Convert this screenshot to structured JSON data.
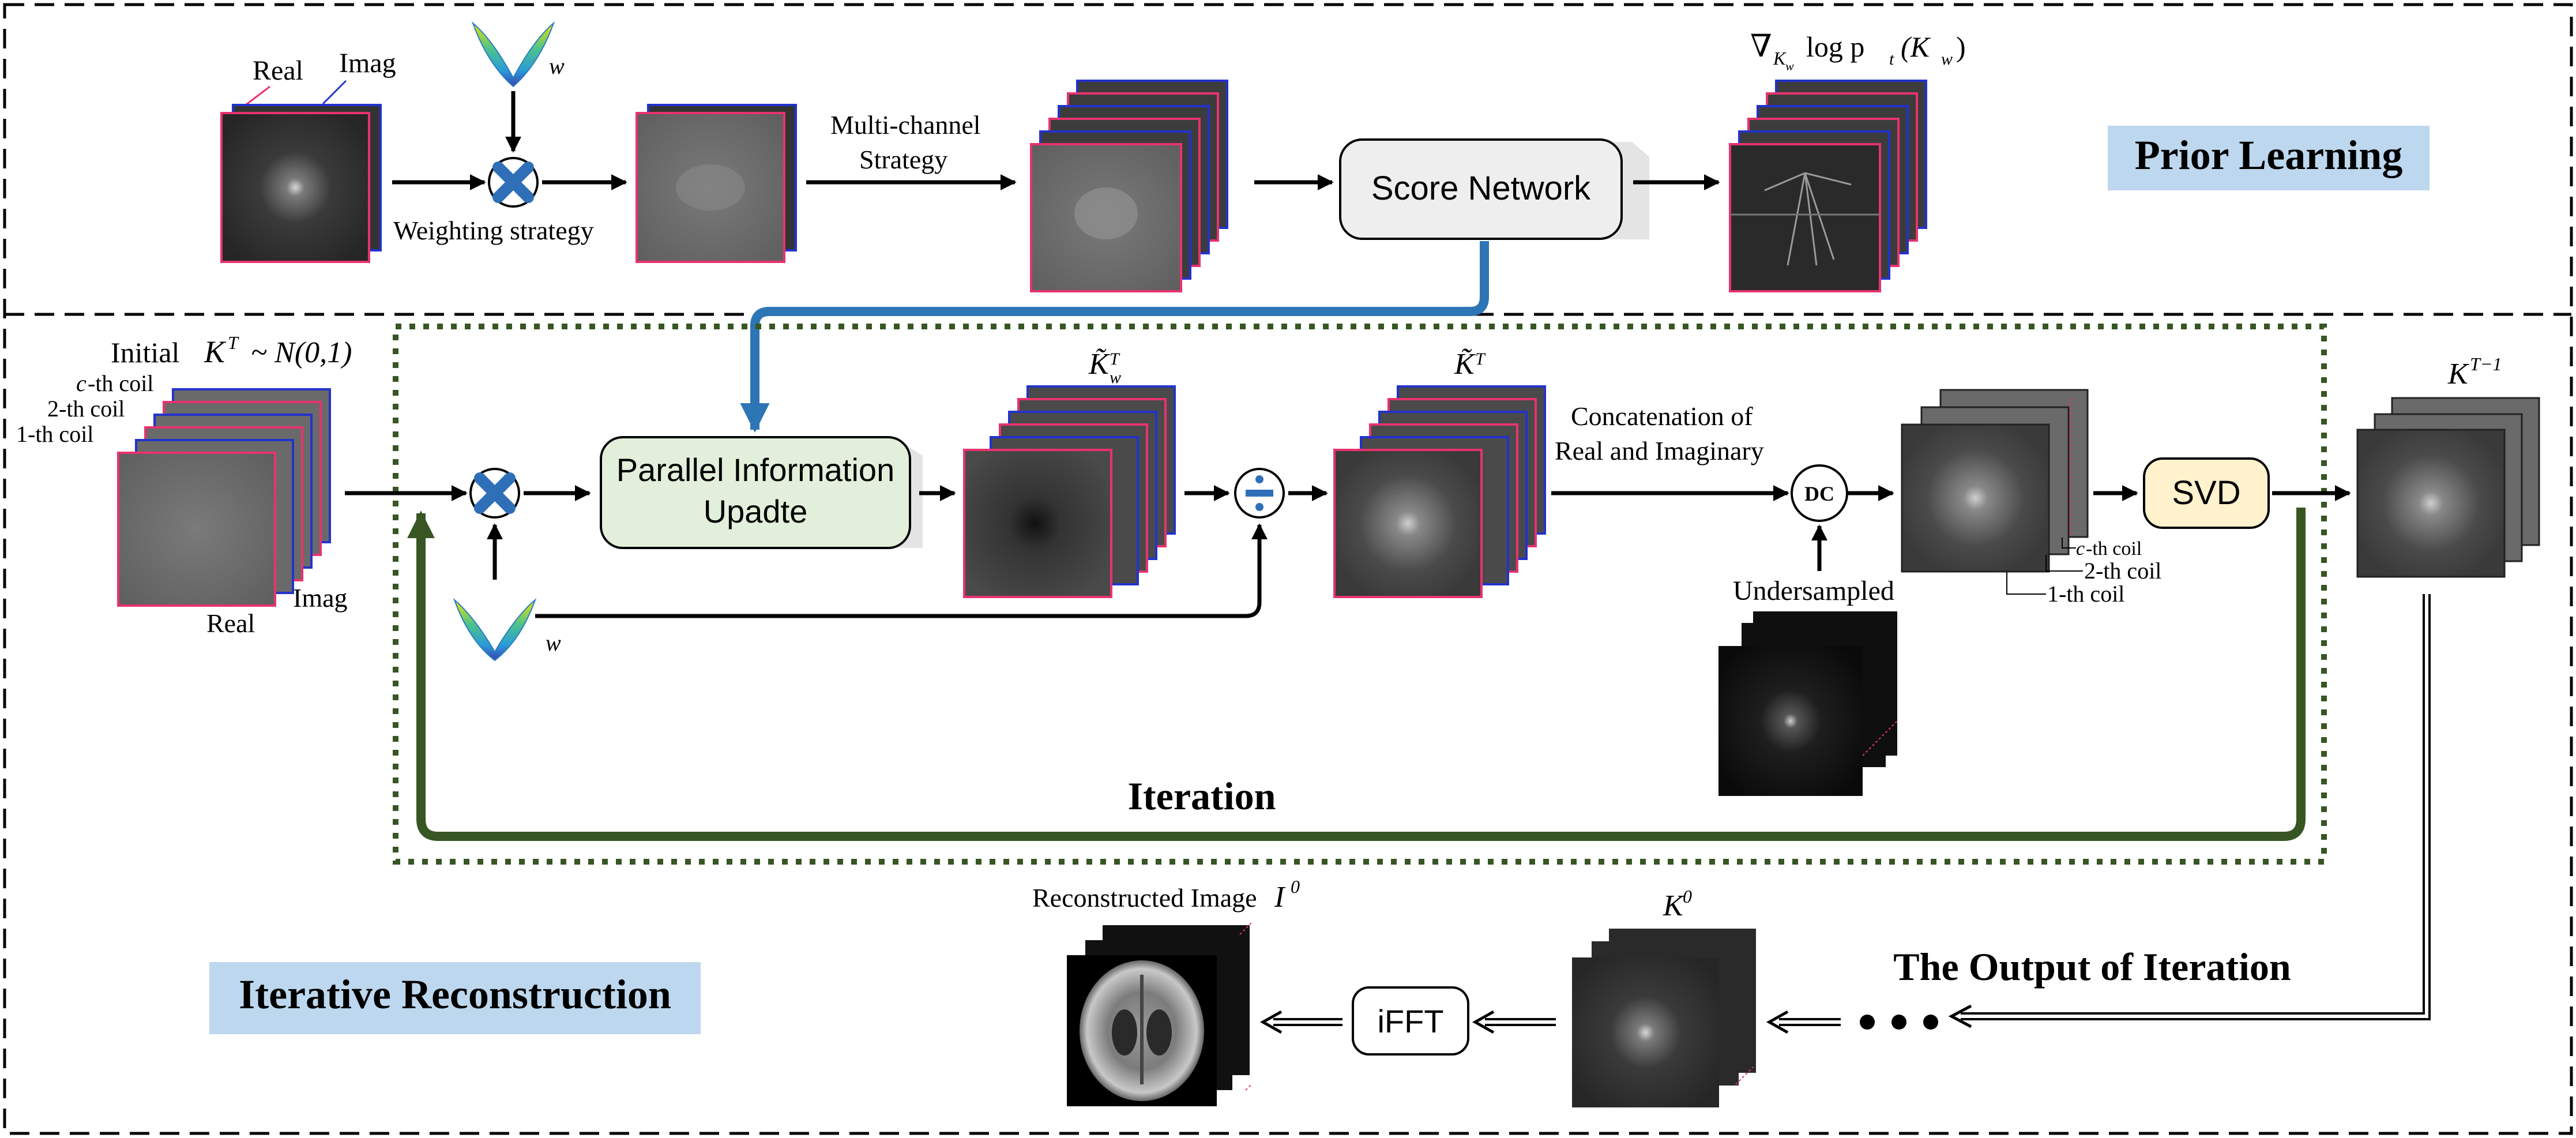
{
  "prior_learning": {
    "real_label": "Real",
    "imag_label": "Imag",
    "weight_symbol": "w",
    "weighting_label": "Weighting strategy",
    "multichannel_line1": "Multi-channel",
    "multichannel_line2": "Strategy",
    "score_network": "Score Network",
    "score_formula": "∇",
    "score_formula_sub": "K",
    "score_formula_subsub": "w",
    "score_formula_rest": "log p",
    "score_formula_t": "t",
    "score_formula_arg": "(K",
    "score_formula_arg_sub": "w",
    "score_formula_close": ")",
    "section_title": "Prior Learning"
  },
  "iterative": {
    "initial_label": "Initial",
    "initial_K": "K",
    "initial_sup": "T",
    "initial_dist": "~ N(0,1)",
    "coil_c": "c",
    "coil_c_rest": "-th coil",
    "coil_2": "2-th coil",
    "coil_1": "1-th coil",
    "imag_label": "Imag",
    "real_label": "Real",
    "weight_symbol": "w",
    "parallel_line1": "Parallel Information",
    "parallel_line2": "Upadte",
    "kw_hat_K": "K̃",
    "kw_hat_sub": "w",
    "kw_hat_sup": "T",
    "k_hat_K": "K̃",
    "k_hat_sup": "T",
    "concat_line1": "Concatenation of",
    "concat_line2": "Real and Imaginary",
    "dc_label": "DC",
    "undersampled": "Undersampled",
    "svd": "SVD",
    "out_coil_c": "c",
    "out_coil_c_rest": "-th coil",
    "out_coil_2": "2-th coil",
    "out_coil_1": "1-th coil",
    "kt1_K": "K",
    "kt1_sup": "T−1",
    "iteration": "Iteration",
    "output_of_iteration": "The Output of Iteration",
    "k0_K": "K",
    "k0_sup": "0",
    "ifft": "iFFT",
    "recon_label": "Reconstructed Image",
    "recon_I": "I",
    "recon_sup": "0",
    "section_title": "Iterative Reconstruction"
  },
  "colors": {
    "real_frame": "#e8336d",
    "imag_frame": "#2233cc",
    "score_link": "#2e75b6",
    "iteration_green": "#375623",
    "section_bg": "#bdd7ee",
    "parallel_fill": "#e2efda",
    "svd_fill": "#fff2cc",
    "score_fill": "#eeeeee",
    "multiply_icon": "#2e6fb8"
  }
}
